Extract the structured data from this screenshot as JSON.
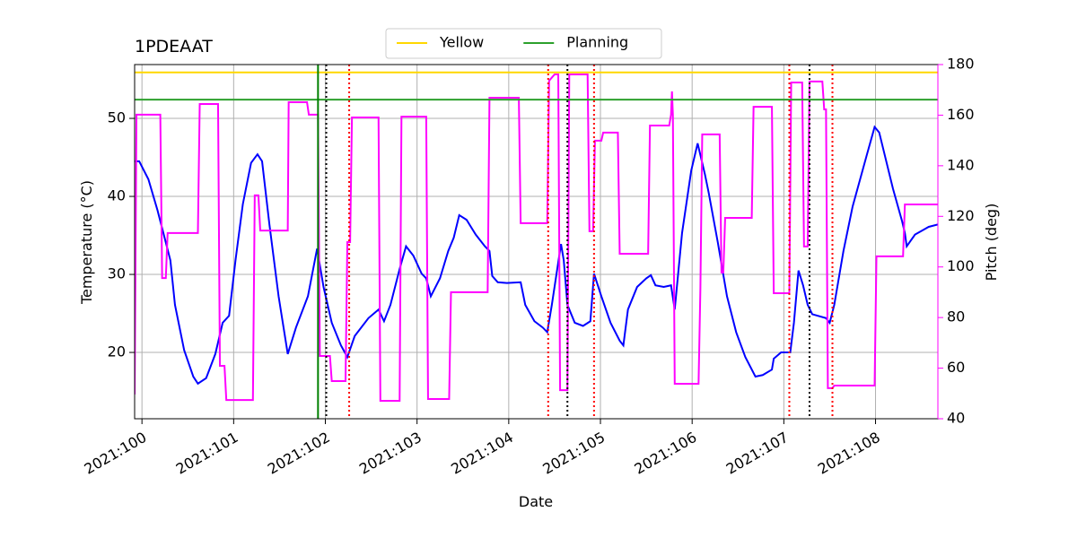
{
  "chart_data": {
    "type": "line",
    "title": "1PDEAAT",
    "xlabel": "Date",
    "ylabel": "Temperature (°C)",
    "y2label": "Pitch (deg)",
    "xlim": [
      99.92,
      108.68
    ],
    "xticks": [
      {
        "value": 100,
        "label": "2021:100"
      },
      {
        "value": 101,
        "label": "2021:101"
      },
      {
        "value": 102,
        "label": "2021:102"
      },
      {
        "value": 103,
        "label": "2021:103"
      },
      {
        "value": 104,
        "label": "2021:104"
      },
      {
        "value": 105,
        "label": "2021:105"
      },
      {
        "value": 106,
        "label": "2021:106"
      },
      {
        "value": 107,
        "label": "2021:107"
      },
      {
        "value": 108,
        "label": "2021:108"
      }
    ],
    "ylim": [
      11.5,
      56.9
    ],
    "yticks": [
      20,
      30,
      40,
      50
    ],
    "y2lim": [
      40,
      180
    ],
    "y2ticks": [
      40,
      60,
      80,
      100,
      120,
      140,
      160,
      180
    ],
    "y2color": "#ff00ff",
    "grid": true,
    "legend": "upper center",
    "hlines": [
      {
        "name": "Yellow",
        "color": "#ffd700",
        "value": 55.9
      },
      {
        "name": "Planning",
        "color": "#2ca02c",
        "value": 52.4
      }
    ],
    "vlines": [
      {
        "color": "#008000",
        "style": "solid",
        "x": 101.92
      },
      {
        "color": "#000000",
        "style": "dotted",
        "x": 102.01
      },
      {
        "color": "#000000",
        "style": "dotted",
        "x": 104.64
      },
      {
        "color": "#000000",
        "style": "dotted",
        "x": 107.28
      },
      {
        "color": "#ff0000",
        "style": "dotted",
        "x": 102.26
      },
      {
        "color": "#ff0000",
        "style": "dotted",
        "x": 104.43
      },
      {
        "color": "#ff0000",
        "style": "dotted",
        "x": 104.93
      },
      {
        "color": "#ff0000",
        "style": "dotted",
        "x": 107.06
      },
      {
        "color": "#ff0000",
        "style": "dotted",
        "x": 107.53
      }
    ],
    "series": [
      {
        "color": "#0000ff",
        "x": [
          99.92,
          99.97,
          100.07,
          100.17,
          100.26,
          100.31,
          100.36,
          100.46,
          100.56,
          100.61,
          100.7,
          100.8,
          100.88,
          100.95,
          101.02,
          101.1,
          101.19,
          101.26,
          101.31,
          101.39,
          101.49,
          101.59,
          101.68,
          101.81,
          101.91,
          101.98,
          102.07,
          102.17,
          102.24,
          102.32,
          102.47,
          102.58,
          102.64,
          102.71,
          102.81,
          102.88,
          102.96,
          103.05,
          103.1,
          103.15,
          103.25,
          103.34,
          103.4,
          103.46,
          103.54,
          103.64,
          103.74,
          103.79,
          103.82,
          103.88,
          103.98,
          104.13,
          104.18,
          104.28,
          104.37,
          104.42,
          104.47,
          104.57,
          104.6,
          104.64,
          104.72,
          104.81,
          104.89,
          104.93,
          105.01,
          105.11,
          105.21,
          105.25,
          105.3,
          105.4,
          105.5,
          105.55,
          105.6,
          105.69,
          105.77,
          105.81,
          105.89,
          105.99,
          106.06,
          106.14,
          106.18,
          106.28,
          106.38,
          106.48,
          106.58,
          106.69,
          106.77,
          106.87,
          106.89,
          106.97,
          107.07,
          107.11,
          107.16,
          107.21,
          107.26,
          107.31,
          107.46,
          107.5,
          107.55,
          107.65,
          107.75,
          107.9,
          107.99,
          108.04,
          108.19,
          108.29,
          108.32,
          108.34,
          108.43,
          108.58,
          108.68
        ],
        "values": [
          44.5,
          44.5,
          42.2,
          38.2,
          34.1,
          31.8,
          26.1,
          20.3,
          16.9,
          16.0,
          16.7,
          19.8,
          23.8,
          24.7,
          31.8,
          39.0,
          44.3,
          45.4,
          44.5,
          36.4,
          27.2,
          19.8,
          23.2,
          27.2,
          33.3,
          28.4,
          23.8,
          20.9,
          19.4,
          22.1,
          24.4,
          25.5,
          24.0,
          26.1,
          30.7,
          33.6,
          32.4,
          30.1,
          29.5,
          27.2,
          29.5,
          33.0,
          34.7,
          37.6,
          37.0,
          35.1,
          33.6,
          33.0,
          29.8,
          29.0,
          28.9,
          29.0,
          26.1,
          24.0,
          23.2,
          22.6,
          26.1,
          33.9,
          31.8,
          26.1,
          23.8,
          23.4,
          24.0,
          30.1,
          27.2,
          23.8,
          21.5,
          20.9,
          25.5,
          28.4,
          29.5,
          29.9,
          28.6,
          28.4,
          28.6,
          25.5,
          35.3,
          43.3,
          46.8,
          42.8,
          40.5,
          34.1,
          27.2,
          22.6,
          19.4,
          16.9,
          17.1,
          17.8,
          19.2,
          20.0,
          20.0,
          23.8,
          30.5,
          28.6,
          26.1,
          24.9,
          24.4,
          23.8,
          26.1,
          33.0,
          38.7,
          45.1,
          48.9,
          48.2,
          41.0,
          36.8,
          35.3,
          33.6,
          35.1,
          36.1,
          36.4
        ]
      },
      {
        "color": "#ff00ff",
        "axis": "y2",
        "x": [
          99.92,
          99.94,
          100.2,
          100.22,
          100.26,
          100.28,
          100.61,
          100.63,
          100.83,
          100.85,
          100.9,
          100.92,
          101.21,
          101.23,
          101.27,
          101.29,
          101.59,
          101.6,
          101.8,
          101.82,
          101.92,
          101.94,
          102.05,
          102.07,
          102.22,
          102.24,
          102.27,
          102.29,
          102.58,
          102.6,
          102.81,
          102.83,
          103.1,
          103.12,
          103.35,
          103.37,
          103.77,
          103.79,
          104.11,
          104.13,
          104.42,
          104.44,
          104.5,
          104.54,
          104.56,
          104.64,
          104.66,
          104.86,
          104.88,
          104.92,
          104.94,
          105.01,
          105.03,
          105.19,
          105.21,
          105.52,
          105.54,
          105.75,
          105.77,
          105.78,
          105.79,
          105.81,
          106.07,
          106.09,
          106.11,
          106.3,
          106.32,
          106.34,
          106.36,
          106.65,
          106.67,
          106.87,
          106.89,
          107.06,
          107.08,
          107.2,
          107.22,
          107.26,
          107.28,
          107.42,
          107.44,
          107.46,
          107.48,
          107.53,
          107.55,
          107.99,
          108.01,
          108.3,
          108.32,
          108.68
        ],
        "values": [
          49.6,
          160.2,
          160.2,
          95.6,
          95.6,
          113.4,
          113.4,
          164.4,
          164.4,
          60.9,
          60.9,
          47.4,
          47.4,
          128.3,
          128.3,
          114.4,
          114.4,
          165.1,
          165.1,
          160.2,
          160.2,
          64.8,
          64.8,
          54.9,
          54.9,
          109.8,
          109.8,
          159.1,
          159.1,
          47.1,
          47.1,
          159.4,
          159.4,
          47.8,
          47.8,
          90.0,
          90.0,
          166.9,
          166.9,
          117.3,
          117.3,
          173.6,
          176.1,
          176.1,
          51.3,
          51.3,
          176.1,
          176.1,
          114.1,
          114.1,
          149.9,
          149.9,
          153.1,
          153.1,
          105.2,
          105.2,
          155.9,
          155.9,
          160.2,
          169.4,
          160.2,
          53.8,
          53.8,
          91.4,
          152.4,
          152.4,
          97.8,
          97.8,
          119.4,
          119.4,
          163.3,
          163.3,
          89.6,
          89.6,
          172.9,
          172.9,
          108.1,
          108.1,
          173.3,
          173.3,
          162.3,
          162.3,
          52.1,
          52.1,
          53.1,
          53.1,
          104.2,
          104.2,
          124.7,
          124.7
        ]
      }
    ]
  }
}
